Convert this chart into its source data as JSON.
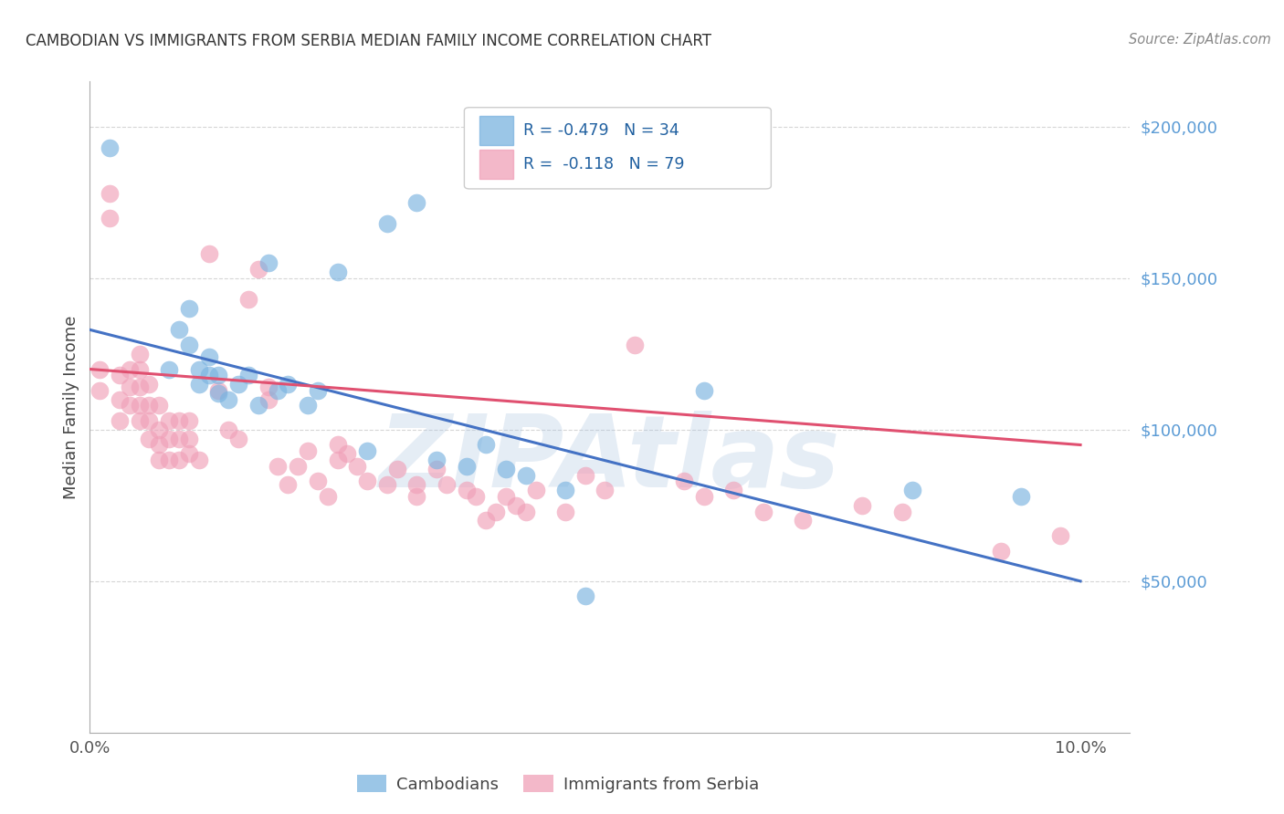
{
  "title": "CAMBODIAN VS IMMIGRANTS FROM SERBIA MEDIAN FAMILY INCOME CORRELATION CHART",
  "source": "Source: ZipAtlas.com",
  "ylabel": "Median Family Income",
  "xlim": [
    0.0,
    0.105
  ],
  "ylim": [
    0,
    215000
  ],
  "ytick_positions": [
    50000,
    100000,
    150000,
    200000
  ],
  "ytick_labels": [
    "$50,000",
    "$100,000",
    "$150,000",
    "$200,000"
  ],
  "background_color": "#ffffff",
  "grid_color": "#cccccc",
  "watermark": "ZIPAtlas",
  "watermark_color": "#aac4e0",
  "cambodian_color": "#7ab3e0",
  "serbia_color": "#f0a0b8",
  "cambodian_line_color": "#4472c4",
  "serbia_line_color": "#e05070",
  "legend_r_cambodian": "R = -0.479",
  "legend_n_cambodian": "N = 34",
  "legend_r_serbia": "R =  -0.118",
  "legend_n_serbia": "N = 79",
  "legend_label_cambodian": "Cambodians",
  "legend_label_serbia": "Immigrants from Serbia",
  "cambodian_line_x0": 0.0,
  "cambodian_line_y0": 133000,
  "cambodian_line_x1": 0.1,
  "cambodian_line_y1": 50000,
  "serbia_line_x0": 0.0,
  "serbia_line_y0": 120000,
  "serbia_line_x1": 0.1,
  "serbia_line_y1": 95000,
  "cambodian_x": [
    0.002,
    0.008,
    0.009,
    0.01,
    0.01,
    0.011,
    0.011,
    0.012,
    0.012,
    0.013,
    0.013,
    0.014,
    0.015,
    0.016,
    0.017,
    0.018,
    0.019,
    0.02,
    0.022,
    0.023,
    0.025,
    0.028,
    0.03,
    0.033,
    0.035,
    0.038,
    0.04,
    0.042,
    0.044,
    0.048,
    0.05,
    0.062,
    0.083,
    0.094
  ],
  "cambodian_y": [
    193000,
    120000,
    133000,
    140000,
    128000,
    115000,
    120000,
    118000,
    124000,
    112000,
    118000,
    110000,
    115000,
    118000,
    108000,
    155000,
    113000,
    115000,
    108000,
    113000,
    152000,
    93000,
    168000,
    175000,
    90000,
    88000,
    95000,
    87000,
    85000,
    80000,
    45000,
    113000,
    80000,
    78000
  ],
  "serbia_x": [
    0.001,
    0.001,
    0.002,
    0.002,
    0.003,
    0.003,
    0.003,
    0.004,
    0.004,
    0.004,
    0.005,
    0.005,
    0.005,
    0.005,
    0.005,
    0.006,
    0.006,
    0.006,
    0.006,
    0.007,
    0.007,
    0.007,
    0.007,
    0.008,
    0.008,
    0.008,
    0.009,
    0.009,
    0.009,
    0.01,
    0.01,
    0.01,
    0.011,
    0.012,
    0.013,
    0.014,
    0.015,
    0.016,
    0.017,
    0.018,
    0.018,
    0.019,
    0.02,
    0.021,
    0.022,
    0.023,
    0.024,
    0.025,
    0.025,
    0.026,
    0.027,
    0.028,
    0.03,
    0.031,
    0.033,
    0.033,
    0.035,
    0.036,
    0.038,
    0.039,
    0.04,
    0.041,
    0.042,
    0.043,
    0.044,
    0.045,
    0.048,
    0.05,
    0.052,
    0.055,
    0.06,
    0.062,
    0.065,
    0.068,
    0.072,
    0.078,
    0.082,
    0.092,
    0.098
  ],
  "serbia_y": [
    113000,
    120000,
    170000,
    178000,
    103000,
    110000,
    118000,
    108000,
    114000,
    120000,
    103000,
    108000,
    114000,
    120000,
    125000,
    97000,
    103000,
    108000,
    115000,
    90000,
    95000,
    100000,
    108000,
    90000,
    97000,
    103000,
    90000,
    97000,
    103000,
    92000,
    97000,
    103000,
    90000,
    158000,
    113000,
    100000,
    97000,
    143000,
    153000,
    110000,
    114000,
    88000,
    82000,
    88000,
    93000,
    83000,
    78000,
    90000,
    95000,
    92000,
    88000,
    83000,
    82000,
    87000,
    78000,
    82000,
    87000,
    82000,
    80000,
    78000,
    70000,
    73000,
    78000,
    75000,
    73000,
    80000,
    73000,
    85000,
    80000,
    128000,
    83000,
    78000,
    80000,
    73000,
    70000,
    75000,
    73000,
    60000,
    65000
  ]
}
